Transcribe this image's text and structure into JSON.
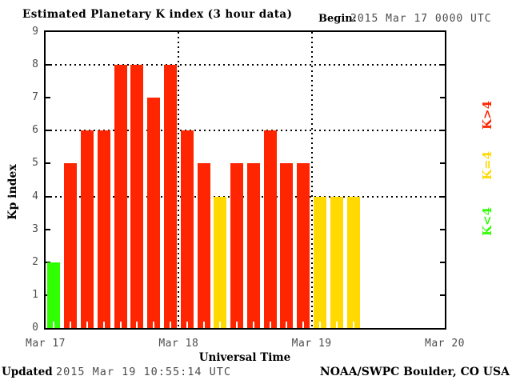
{
  "header": {
    "title": "Estimated Planetary K index (3 hour data)",
    "begin_label": "Begin:",
    "begin_value": "2015 Mar 17 0000 UTC"
  },
  "footer": {
    "updated_label": "Updated",
    "updated_value": "2015 Mar 19 10:55:14 UTC",
    "credit": "NOAA/SWPC Boulder, CO USA"
  },
  "chart_data": {
    "type": "bar",
    "title": "Estimated Planetary K index (3 hour data)",
    "xlabel": "Universal Time",
    "ylabel": "Kp index",
    "ylim": [
      0,
      9
    ],
    "yticks": [
      0,
      1,
      2,
      3,
      4,
      5,
      6,
      7,
      8,
      9
    ],
    "gridlines_y": [
      4,
      6,
      8
    ],
    "grid": "dotted",
    "slot_hours": 3,
    "slots_per_day": 8,
    "days": [
      "Mar 17",
      "Mar 18",
      "Mar 19",
      "Mar 20"
    ],
    "values": [
      2,
      5,
      6,
      6,
      8,
      8,
      7,
      8,
      6,
      5,
      4,
      5,
      5,
      6,
      5,
      5,
      4,
      4,
      4
    ],
    "series": [
      {
        "name": "Mar 17",
        "values": [
          2,
          5,
          6,
          6,
          8,
          8,
          7,
          8
        ]
      },
      {
        "name": "Mar 18",
        "values": [
          6,
          5,
          4,
          5,
          5,
          6,
          5,
          5
        ]
      },
      {
        "name": "Mar 19",
        "values": [
          4,
          4,
          4
        ]
      }
    ],
    "color_rules": {
      "below_4": "#2fff00",
      "equal_4": "#ffd900",
      "above_4": "#ff2500"
    },
    "legend": [
      {
        "label": "K>4",
        "color": "#ff2500"
      },
      {
        "label": "K=4",
        "color": "#ffd900"
      },
      {
        "label": "K<4",
        "color": "#2fff00"
      }
    ],
    "legend_position": "right-rotated"
  },
  "colors": {
    "background": "#ffffff",
    "axis": "#000000",
    "muted_text": "#4d4d4d"
  }
}
